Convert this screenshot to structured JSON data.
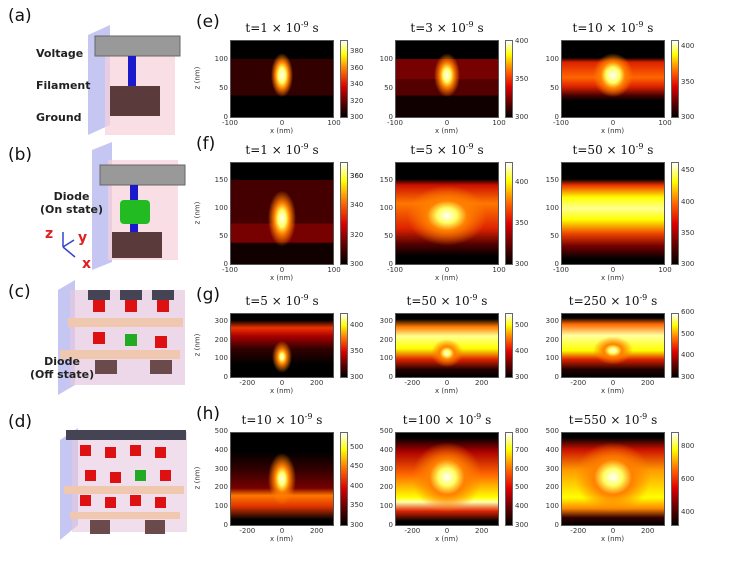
{
  "left_panels": {
    "labels": [
      "(a)",
      "(b)",
      "(c)",
      "(d)"
    ],
    "voltage": "Voltage",
    "filament": "Filament",
    "ground": "Ground",
    "diode_on": [
      "Diode",
      "(On state)"
    ],
    "diode_off": [
      "Diode",
      "(Off state)"
    ],
    "axes": {
      "z": "z",
      "y": "y",
      "x": "x"
    }
  },
  "row_labels": [
    "(e)",
    "(f)",
    "(g)",
    "(h)"
  ],
  "chart_data": [
    {
      "type": "heatmap",
      "row": "e",
      "title_prefix": "t=1 × 10",
      "title_exp": "-9",
      "title_suffix": " s",
      "xlabel": "x (nm)",
      "ylabel": "z (nm)",
      "xlim": [
        -100,
        100
      ],
      "ylim": [
        0,
        135
      ],
      "xticks": [
        "-100",
        "0",
        "100"
      ],
      "xtick_values": [
        -100,
        0,
        100
      ],
      "yticks": [
        "0",
        "50",
        "100"
      ],
      "ytick_values": [
        0,
        50,
        100
      ],
      "colorbar_range": [
        300,
        395
      ],
      "colorbar_ticks": [
        "300",
        "320",
        "340",
        "360",
        "380"
      ],
      "colorbar_values": [
        300,
        320,
        340,
        360,
        380
      ]
    },
    {
      "type": "heatmap",
      "row": "e",
      "title_prefix": "t=3 × 10",
      "title_exp": "-9",
      "title_suffix": " s",
      "xlabel": "x (nm)",
      "ylabel": "",
      "xlim": [
        -100,
        100
      ],
      "ylim": [
        0,
        135
      ],
      "xticks": [
        "-100",
        "0",
        "100"
      ],
      "xtick_values": [
        -100,
        0,
        100
      ],
      "yticks": [
        "0",
        "50",
        "100"
      ],
      "ytick_values": [
        0,
        50,
        100
      ],
      "colorbar_range": [
        300,
        402
      ],
      "colorbar_ticks": [
        "300",
        "350",
        "400"
      ],
      "colorbar_values": [
        300,
        350,
        400
      ]
    },
    {
      "type": "heatmap",
      "row": "e",
      "title_prefix": "t=10 × 10",
      "title_exp": "-9",
      "title_suffix": " s",
      "xlabel": "x (nm)",
      "ylabel": "",
      "xlim": [
        -100,
        100
      ],
      "ylim": [
        0,
        135
      ],
      "xticks": [
        "-100",
        "0",
        "100"
      ],
      "xtick_values": [
        -100,
        0,
        100
      ],
      "yticks": [
        "0",
        "50",
        "100"
      ],
      "ytick_values": [
        0,
        50,
        100
      ],
      "colorbar_range": [
        300,
        410
      ],
      "colorbar_ticks": [
        "300",
        "350",
        "400"
      ],
      "colorbar_values": [
        300,
        350,
        400
      ]
    },
    {
      "type": "heatmap",
      "row": "f",
      "title_prefix": "t=1 × 10",
      "title_exp": "-9",
      "title_suffix": " s",
      "xlabel": "x (nm)",
      "ylabel": "z (nm)",
      "xlim": [
        -100,
        100
      ],
      "ylim": [
        0,
        185
      ],
      "xticks": [
        "-100",
        "0",
        "100"
      ],
      "xtick_values": [
        -100,
        0,
        100
      ],
      "yticks": [
        "0",
        "50",
        "100",
        "150"
      ],
      "ytick_values": [
        0,
        50,
        100,
        150
      ],
      "colorbar_range": [
        300,
        370
      ],
      "colorbar_ticks": [
        "300",
        "320",
        "340",
        "360",
        "360"
      ],
      "colorbar_values": [
        300,
        320,
        340,
        360,
        360
      ]
    },
    {
      "type": "heatmap",
      "row": "f",
      "title_prefix": "t=5 × 10",
      "title_exp": "-9",
      "title_suffix": " s",
      "xlabel": "x (nm)",
      "ylabel": "",
      "xlim": [
        -100,
        100
      ],
      "ylim": [
        0,
        185
      ],
      "xticks": [
        "-100",
        "0",
        "100"
      ],
      "xtick_values": [
        -100,
        0,
        100
      ],
      "yticks": [
        "0",
        "50",
        "100",
        "150"
      ],
      "ytick_values": [
        0,
        50,
        100,
        150
      ],
      "colorbar_range": [
        300,
        425
      ],
      "colorbar_ticks": [
        "300",
        "350",
        "400"
      ],
      "colorbar_values": [
        300,
        350,
        400
      ]
    },
    {
      "type": "heatmap",
      "row": "f",
      "title_prefix": "t=50 × 10",
      "title_exp": "-9",
      "title_suffix": " s",
      "xlabel": "x (nm)",
      "ylabel": "",
      "xlim": [
        -100,
        100
      ],
      "ylim": [
        0,
        185
      ],
      "xticks": [
        "-100",
        "0",
        "100"
      ],
      "xtick_values": [
        -100,
        0,
        100
      ],
      "yticks": [
        "0",
        "50",
        "100",
        "150"
      ],
      "ytick_values": [
        0,
        50,
        100,
        150
      ],
      "colorbar_range": [
        300,
        465
      ],
      "colorbar_ticks": [
        "300",
        "350",
        "400",
        "450"
      ],
      "colorbar_values": [
        300,
        350,
        400,
        450
      ]
    },
    {
      "type": "heatmap",
      "row": "g",
      "title_prefix": "t=5 × 10",
      "title_exp": "-9",
      "title_suffix": " s",
      "xlabel": "x (nm)",
      "ylabel": "z (nm)",
      "xlim": [
        -300,
        300
      ],
      "ylim": [
        0,
        350
      ],
      "xticks": [
        "-200",
        "0",
        "200"
      ],
      "xtick_values": [
        -200,
        0,
        200
      ],
      "yticks": [
        "0",
        "100",
        "200",
        "300"
      ],
      "ytick_values": [
        0,
        100,
        200,
        300
      ],
      "colorbar_range": [
        300,
        425
      ],
      "colorbar_ticks": [
        "300",
        "350",
        "400"
      ],
      "colorbar_values": [
        300,
        350,
        400
      ]
    },
    {
      "type": "heatmap",
      "row": "g",
      "title_prefix": "t=50 × 10",
      "title_exp": "-9",
      "title_suffix": " s",
      "xlabel": "x (nm)",
      "ylabel": "",
      "xlim": [
        -300,
        300
      ],
      "ylim": [
        0,
        350
      ],
      "xticks": [
        "-200",
        "0",
        "200"
      ],
      "xtick_values": [
        -200,
        0,
        200
      ],
      "yticks": [
        "0",
        "100",
        "200",
        "300"
      ],
      "ytick_values": [
        0,
        100,
        200,
        300
      ],
      "colorbar_range": [
        300,
        550
      ],
      "colorbar_ticks": [
        "300",
        "400",
        "500"
      ],
      "colorbar_values": [
        300,
        400,
        500
      ]
    },
    {
      "type": "heatmap",
      "row": "g",
      "title_prefix": "t=250 × 10",
      "title_exp": "-9",
      "title_suffix": " s",
      "xlabel": "x (nm)",
      "ylabel": "",
      "xlim": [
        -300,
        300
      ],
      "ylim": [
        0,
        350
      ],
      "xticks": [
        "-200",
        "0",
        "200"
      ],
      "xtick_values": [
        -200,
        0,
        200
      ],
      "yticks": [
        "0",
        "100",
        "200",
        "300"
      ],
      "ytick_values": [
        0,
        100,
        200,
        300
      ],
      "colorbar_range": [
        300,
        600
      ],
      "colorbar_ticks": [
        "300",
        "400",
        "500",
        "600"
      ],
      "colorbar_values": [
        300,
        400,
        500,
        600
      ]
    },
    {
      "type": "heatmap",
      "row": "h",
      "title_prefix": "t=10 × 10",
      "title_exp": "-9",
      "title_suffix": " s",
      "xlabel": "x (nm)",
      "ylabel": "z (nm)",
      "xlim": [
        -300,
        300
      ],
      "ylim": [
        0,
        500
      ],
      "xticks": [
        "-200",
        "0",
        "200"
      ],
      "xtick_values": [
        -200,
        0,
        200
      ],
      "yticks": [
        "0",
        "100",
        "200",
        "300",
        "400",
        "500"
      ],
      "ytick_values": [
        0,
        100,
        200,
        300,
        400,
        500
      ],
      "colorbar_range": [
        300,
        540
      ],
      "colorbar_ticks": [
        "300",
        "350",
        "400",
        "450",
        "500"
      ],
      "colorbar_values": [
        300,
        350,
        400,
        450,
        500
      ]
    },
    {
      "type": "heatmap",
      "row": "h",
      "title_prefix": "t=100 × 10",
      "title_exp": "-9",
      "title_suffix": " s",
      "xlabel": "x (nm)",
      "ylabel": "",
      "xlim": [
        -300,
        300
      ],
      "ylim": [
        0,
        500
      ],
      "xticks": [
        "-200",
        "0",
        "200"
      ],
      "xtick_values": [
        -200,
        0,
        200
      ],
      "yticks": [
        "0",
        "100",
        "200",
        "300",
        "400",
        "500"
      ],
      "ytick_values": [
        0,
        100,
        200,
        300,
        400,
        500
      ],
      "colorbar_range": [
        300,
        800
      ],
      "colorbar_ticks": [
        "300",
        "400",
        "500",
        "600",
        "700",
        "800"
      ],
      "colorbar_values": [
        300,
        400,
        500,
        600,
        700,
        800
      ]
    },
    {
      "type": "heatmap",
      "row": "h",
      "title_prefix": "t=550 × 10",
      "title_exp": "-9",
      "title_suffix": " s",
      "xlabel": "x (nm)",
      "ylabel": "",
      "xlim": [
        -300,
        300
      ],
      "ylim": [
        0,
        500
      ],
      "xticks": [
        "-200",
        "0",
        "200"
      ],
      "xtick_values": [
        -200,
        0,
        200
      ],
      "yticks": [
        "0",
        "100",
        "200",
        "300",
        "400",
        "500"
      ],
      "ytick_values": [
        0,
        100,
        200,
        300,
        400,
        500
      ],
      "colorbar_range": [
        320,
        890
      ],
      "colorbar_ticks": [
        "400",
        "600",
        "800"
      ],
      "colorbar_values": [
        400,
        600,
        800
      ]
    }
  ],
  "colors": {
    "hot_low": "#000000",
    "hot_mid": "#dd0000",
    "hot_high": "#ffff00",
    "hot_max": "#ffffff"
  }
}
